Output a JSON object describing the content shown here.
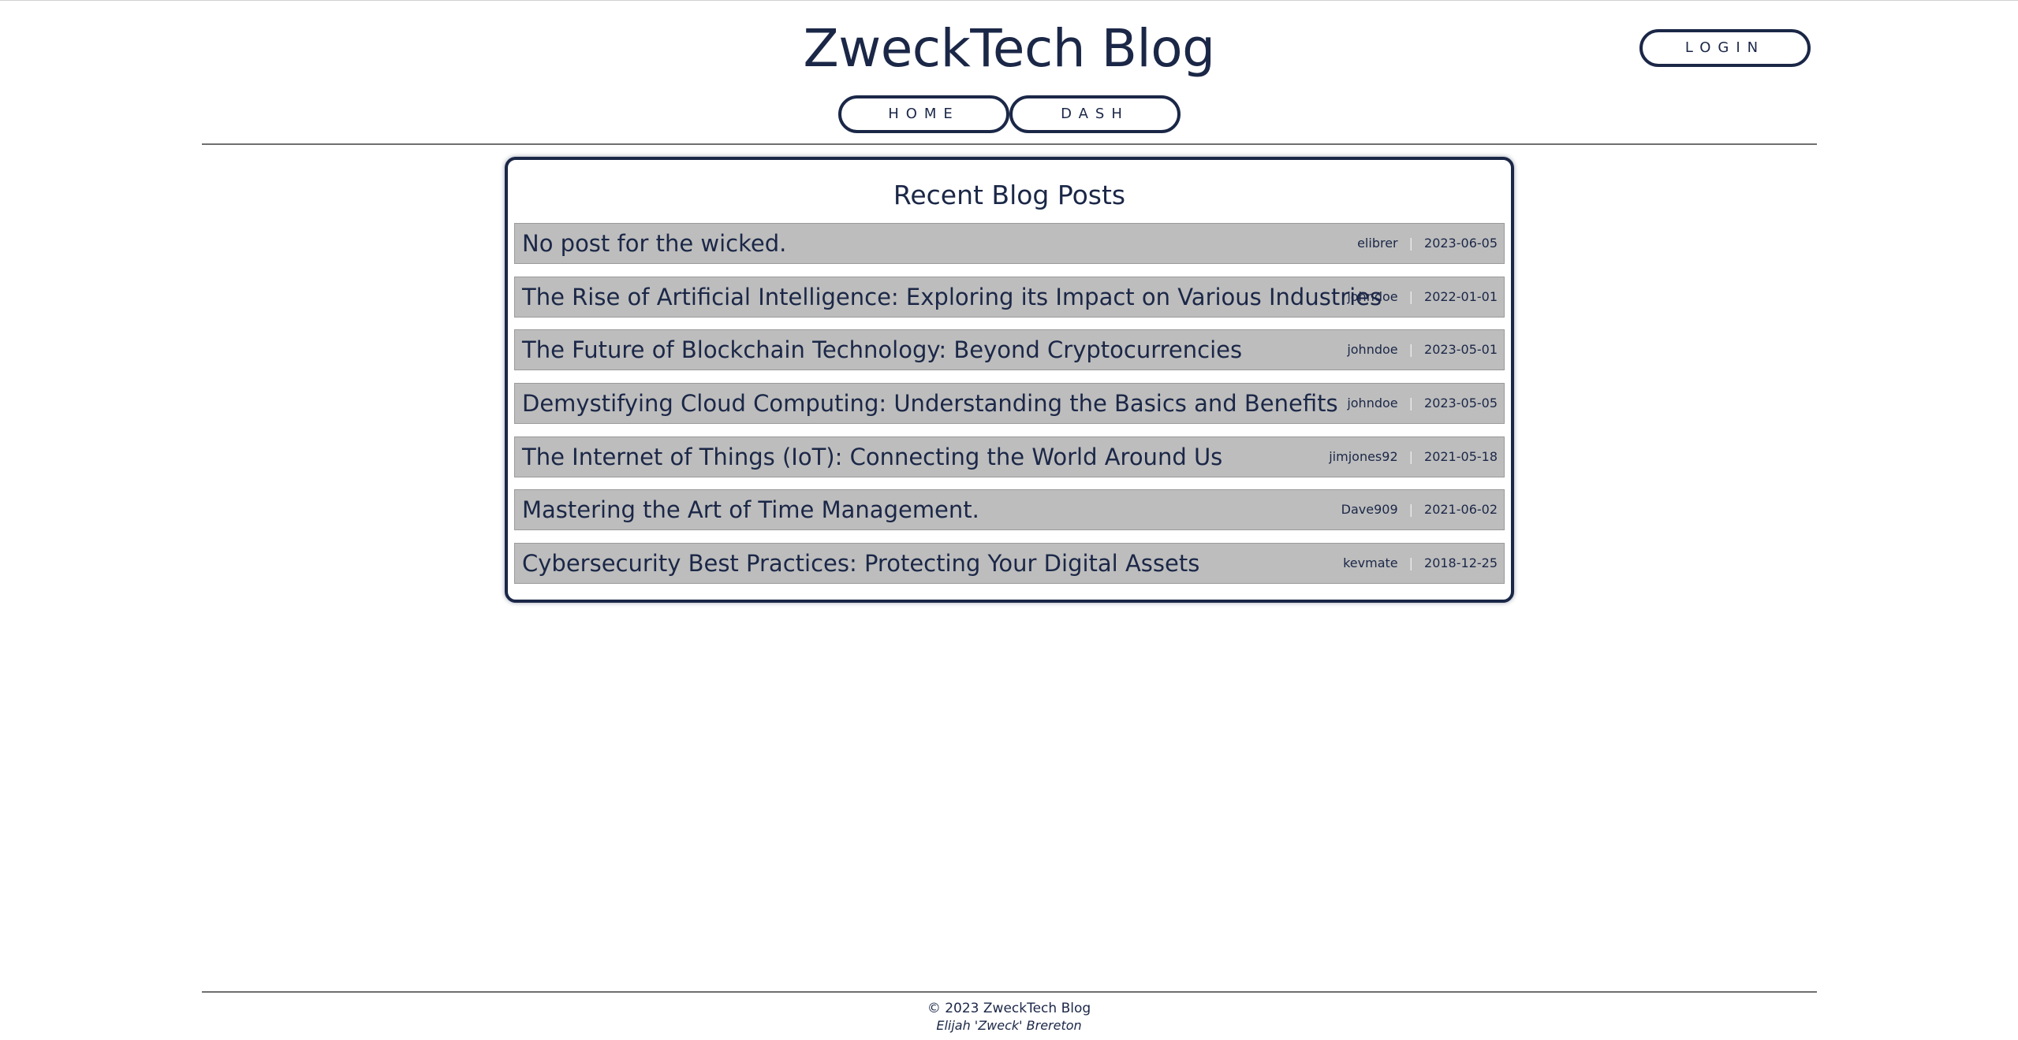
{
  "header": {
    "site_title": "ZweckTech Blog",
    "login_label": "LOGIN",
    "nav": {
      "home_label": "HOME",
      "dash_label": "DASH"
    }
  },
  "main": {
    "heading": "Recent Blog Posts",
    "meta_separator": "|",
    "posts": [
      {
        "title": "No post for the wicked.",
        "author": "elibrer",
        "date": "2023-06-05"
      },
      {
        "title": "The Rise of Artificial Intelligence: Exploring its Impact on Various Industries",
        "author": "johndoe",
        "date": "2022-01-01"
      },
      {
        "title": "The Future of Blockchain Technology: Beyond Cryptocurrencies",
        "author": "johndoe",
        "date": "2023-05-01"
      },
      {
        "title": "Demystifying Cloud Computing: Understanding the Basics and Benefits",
        "author": "johndoe",
        "date": "2023-05-05"
      },
      {
        "title": "The Internet of Things (IoT): Connecting the World Around Us",
        "author": "jimjones92",
        "date": "2021-05-18"
      },
      {
        "title": "Mastering the Art of Time Management.",
        "author": "Dave909",
        "date": "2021-06-02"
      },
      {
        "title": "Cybersecurity Best Practices: Protecting Your Digital Assets",
        "author": "kevmate",
        "date": "2018-12-25"
      }
    ]
  },
  "footer": {
    "copyright": "© 2023 ZweckTech Blog",
    "author": "Elijah 'Zweck' Brereton"
  },
  "colors": {
    "primary": "#1b2747",
    "row_background": "#bdbdbd",
    "divider": "#6f6f6f"
  }
}
